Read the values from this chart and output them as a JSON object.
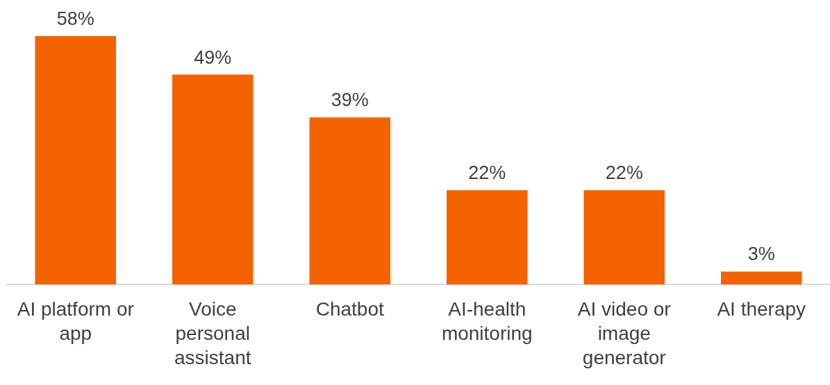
{
  "chart_data": {
    "type": "bar",
    "categories": [
      "AI platform or app",
      "Voice personal assistant",
      "Chatbot",
      "AI-health monitoring",
      "AI video or image generator",
      "AI therapy"
    ],
    "values": [
      58,
      49,
      39,
      22,
      22,
      3
    ],
    "value_labels": [
      "58%",
      "49%",
      "39%",
      "22%",
      "22%",
      "3%"
    ],
    "color": "#f56200",
    "grid": false,
    "legend": false
  }
}
